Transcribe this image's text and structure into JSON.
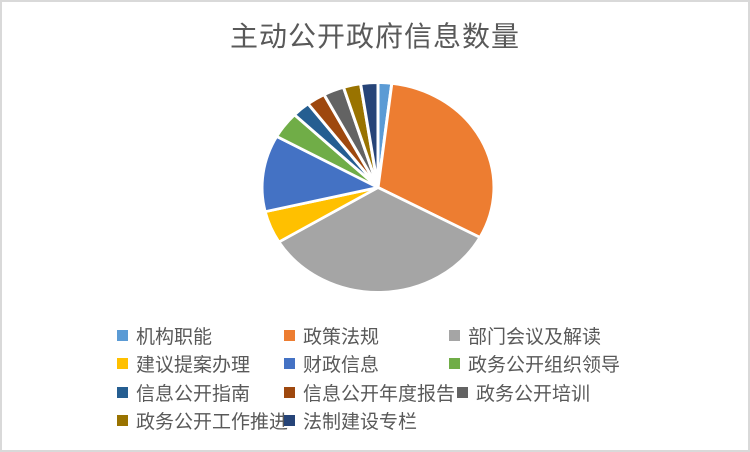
{
  "chart": {
    "background_color": "#FFFFFF",
    "frame_border_color": "#D9D9D9"
  },
  "chart_data": {
    "type": "pie",
    "title": "主动公开政府信息数量",
    "title_color": "#595959",
    "legend_position": "bottom",
    "legend_text_color": "#595959",
    "start_angle_deg": 0,
    "direction": "clockwise",
    "slice_separator_color": "#FFFFFF",
    "categories": [
      "机构职能",
      "政策法规",
      "部门会议及解读",
      "建议提案办理",
      "财政信息",
      "政务公开组织领导",
      "信息公开指南",
      "信息公开年度报告",
      "政务公开培训",
      "政务公开工作推进",
      "法制建设专栏"
    ],
    "values_percent_estimated": [
      1.9,
      31.0,
      33.4,
      5.0,
      11.8,
      4.1,
      2.5,
      2.6,
      2.9,
      2.4,
      2.4
    ],
    "colors": [
      "#5B9BD5",
      "#ED7D31",
      "#A5A5A5",
      "#FFC000",
      "#4472C4",
      "#70AD47",
      "#255E91",
      "#9E480E",
      "#636363",
      "#997300",
      "#264478"
    ]
  }
}
